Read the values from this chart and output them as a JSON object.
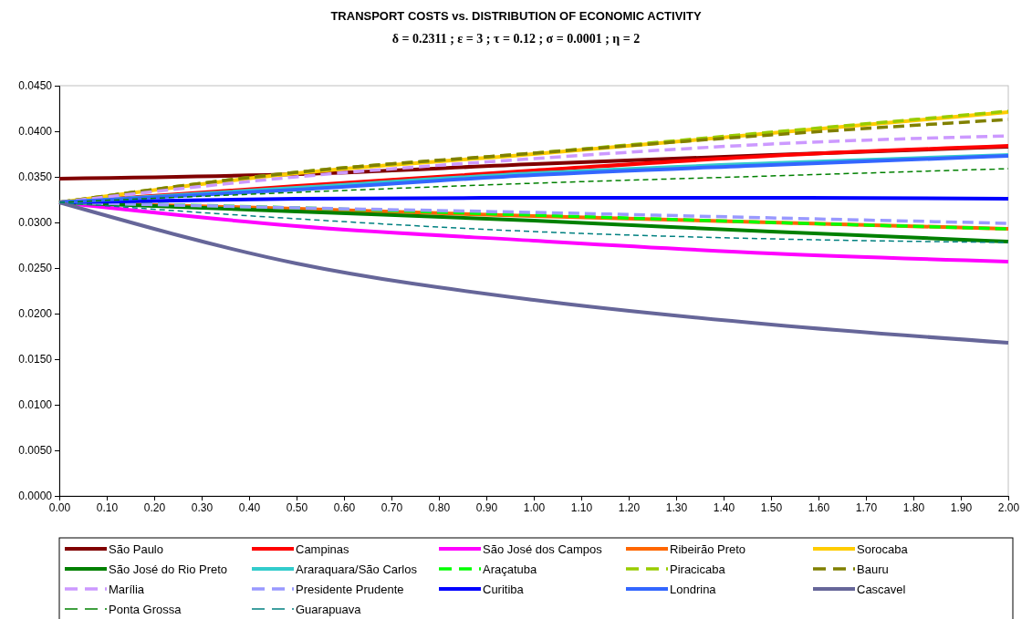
{
  "chart_data": {
    "type": "line",
    "title": "TRANSPORT COSTS vs. DISTRIBUTION OF ECONOMIC ACTIVITY",
    "subtitle": "δ = 0.2311 ; ε = 3 ; τ = 0.12 ; σ = 0.0001 ; η = 2",
    "x": [
      0,
      0.5,
      1,
      1.5,
      2
    ],
    "xlim": [
      0,
      2
    ],
    "xticks": [
      {
        "value": 0,
        "label": "0.00"
      },
      {
        "value": 0.1,
        "label": "0.10"
      },
      {
        "value": 0.2,
        "label": "0.20"
      },
      {
        "value": 0.3,
        "label": "0.30"
      },
      {
        "value": 0.4,
        "label": "0.40"
      },
      {
        "value": 0.5,
        "label": "0.50"
      },
      {
        "value": 0.6,
        "label": "0.60"
      },
      {
        "value": 0.7,
        "label": "0.70"
      },
      {
        "value": 0.8,
        "label": "0.80"
      },
      {
        "value": 0.9,
        "label": "0.90"
      },
      {
        "value": 1,
        "label": "1.00"
      },
      {
        "value": 1.1,
        "label": "1.10"
      },
      {
        "value": 1.2,
        "label": "1.20"
      },
      {
        "value": 1.3,
        "label": "1.30"
      },
      {
        "value": 1.4,
        "label": "1.40"
      },
      {
        "value": 1.5,
        "label": "1.50"
      },
      {
        "value": 1.6,
        "label": "1.60"
      },
      {
        "value": 1.7,
        "label": "1.70"
      },
      {
        "value": 1.8,
        "label": "1.80"
      },
      {
        "value": 1.9,
        "label": "1.90"
      },
      {
        "value": 2,
        "label": "2.00"
      }
    ],
    "ylim": [
      0,
      0.045
    ],
    "yticks": [
      {
        "value": 0,
        "label": "0.0000"
      },
      {
        "value": 0.005,
        "label": "0.0050"
      },
      {
        "value": 0.01,
        "label": "0.0100"
      },
      {
        "value": 0.015,
        "label": "0.0150"
      },
      {
        "value": 0.02,
        "label": "0.0200"
      },
      {
        "value": 0.025,
        "label": "0.0250"
      },
      {
        "value": 0.03,
        "label": "0.0300"
      },
      {
        "value": 0.035,
        "label": "0.0350"
      },
      {
        "value": 0.04,
        "label": "0.0400"
      },
      {
        "value": 0.045,
        "label": "0.0450"
      }
    ],
    "grid": false,
    "legend": "bottom",
    "marker": "none",
    "series": [
      {
        "name": "São Paulo",
        "color": "#800000",
        "line_style": "solid",
        "values": [
          0.0348,
          0.0353,
          0.0364,
          0.0374,
          0.0383
        ]
      },
      {
        "name": "Campinas",
        "color": "#ff0000",
        "line_style": "solid",
        "values": [
          0.0322,
          0.034,
          0.0357,
          0.0373,
          0.0384
        ]
      },
      {
        "name": "São José dos Campos",
        "color": "#ff00ff",
        "line_style": "solid",
        "values": [
          0.0322,
          0.0296,
          0.028,
          0.0266,
          0.0257
        ]
      },
      {
        "name": "Ribeirão Preto",
        "color": "#ff6600",
        "line_style": "solid",
        "values": [
          0.0322,
          0.0315,
          0.0307,
          0.03,
          0.0293
        ]
      },
      {
        "name": "Sorocaba",
        "color": "#ffcc00",
        "line_style": "solid",
        "values": [
          0.0322,
          0.0354,
          0.0375,
          0.0398,
          0.0421
        ]
      },
      {
        "name": "São José do Rio Preto",
        "color": "#008000",
        "line_style": "solid",
        "values": [
          0.0322,
          0.0312,
          0.0302,
          0.029,
          0.0279
        ]
      },
      {
        "name": "Araraquara/São Carlos",
        "color": "#33cccc",
        "line_style": "solid",
        "values": [
          0.0322,
          0.0338,
          0.0354,
          0.0365,
          0.0374
        ]
      },
      {
        "name": "Araçatuba",
        "color": "#00ff00",
        "line_style": "dashed",
        "values": [
          0.0322,
          0.0316,
          0.0308,
          0.03,
          0.0293
        ]
      },
      {
        "name": "Piracicaba",
        "color": "#99cc00",
        "line_style": "dashed",
        "values": [
          0.0322,
          0.0355,
          0.0376,
          0.0399,
          0.0422
        ]
      },
      {
        "name": "Bauru",
        "color": "#808000",
        "line_style": "dashed",
        "values": [
          0.0322,
          0.0355,
          0.0376,
          0.0396,
          0.0413
        ]
      },
      {
        "name": "Marília",
        "color": "#cc99ff",
        "line_style": "dashed",
        "values": [
          0.0322,
          0.035,
          0.037,
          0.0386,
          0.0395
        ]
      },
      {
        "name": "Presidente Prudente",
        "color": "#9999ff",
        "line_style": "dashed",
        "values": [
          0.0322,
          0.0316,
          0.0311,
          0.0305,
          0.0299
        ]
      },
      {
        "name": "Curitiba",
        "color": "#0000ff",
        "line_style": "solid",
        "values": [
          0.0322,
          0.0326,
          0.0327,
          0.0327,
          0.0326
        ]
      },
      {
        "name": "Londrina",
        "color": "#3366ff",
        "line_style": "solid",
        "values": [
          0.0322,
          0.0336,
          0.0352,
          0.0363,
          0.0373
        ]
      },
      {
        "name": "Cascavel",
        "color": "#666699",
        "line_style": "solid",
        "values": [
          0.0322,
          0.0255,
          0.0215,
          0.0188,
          0.0168
        ]
      },
      {
        "name": "Ponta Grossa",
        "color": "#008000",
        "line_style": "dotted",
        "values": [
          0.0322,
          0.0333,
          0.0343,
          0.0351,
          0.0359
        ]
      },
      {
        "name": "Guarapuava",
        "color": "#008080",
        "line_style": "dotted",
        "values": [
          0.0322,
          0.0304,
          0.029,
          0.0282,
          0.0278
        ]
      }
    ]
  }
}
